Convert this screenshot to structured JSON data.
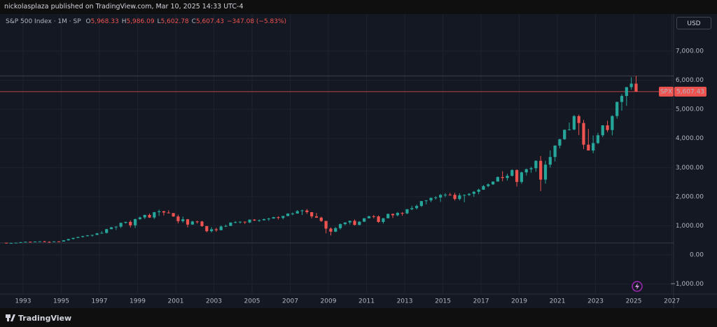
{
  "header": {
    "text": "nickolasplaza published on TradingView.com, Mar 10, 2025 14:33 UTC-4"
  },
  "legend": {
    "symbol": "S&P 500 Index · 1M · SP",
    "items": [
      {
        "key": "O",
        "value": "5,968.33"
      },
      {
        "key": "H",
        "value": "5,986.09"
      },
      {
        "key": "L",
        "value": "5,602.78"
      },
      {
        "key": "C",
        "value": "5,607.43"
      }
    ],
    "change": "−347.08 (−5.83%)"
  },
  "currency_button": "USD",
  "footer": {
    "brand": "TradingView"
  },
  "chart_data": {
    "type": "candlestick",
    "up_color": "#26a69a",
    "down_color": "#ef5350",
    "grid": true,
    "price_label": {
      "symbol": "SPX",
      "last_price": {
        "value": 5607.43,
        "label": "5,607.43"
      }
    },
    "reference_lines": [
      6147,
      409
    ],
    "xlim": [
      1991.79,
      2027.09
    ],
    "xticks": [
      1993,
      1995,
      1997,
      1999,
      2001,
      2003,
      2005,
      2007,
      2009,
      2011,
      2013,
      2015,
      2017,
      2019,
      2021,
      2023,
      2025,
      2027
    ],
    "ylim": [
      -1346,
      8274
    ],
    "yticks": [
      {
        "value": -1000,
        "label": "−1,000.00"
      },
      {
        "value": 0,
        "label": "0.00"
      },
      {
        "value": 1000,
        "label": "1,000.00"
      },
      {
        "value": 2000,
        "label": "2,000.00"
      },
      {
        "value": 3000,
        "label": "3,000.00"
      },
      {
        "value": 4000,
        "label": "4,000.00"
      },
      {
        "value": 5000,
        "label": "5,000.00"
      },
      {
        "value": 6000,
        "label": "6,000.00"
      },
      {
        "value": 7000,
        "label": "7,000.00"
      }
    ],
    "x": [
      1992,
      1992.25,
      1992.5,
      1992.75,
      1993,
      1993.25,
      1993.5,
      1993.75,
      1994,
      1994.25,
      1994.5,
      1994.75,
      1995,
      1995.25,
      1995.5,
      1995.75,
      1996,
      1996.25,
      1996.5,
      1996.75,
      1997,
      1997.25,
      1997.5,
      1997.75,
      1998,
      1998.25,
      1998.5,
      1998.75,
      1999,
      1999.25,
      1999.5,
      1999.75,
      2000,
      2000.25,
      2000.5,
      2000.75,
      2001,
      2001.25,
      2001.5,
      2001.75,
      2002,
      2002.25,
      2002.5,
      2002.75,
      2003,
      2003.25,
      2003.5,
      2003.75,
      2004,
      2004.25,
      2004.5,
      2004.75,
      2005,
      2005.25,
      2005.5,
      2005.75,
      2006,
      2006.25,
      2006.5,
      2006.75,
      2007,
      2007.25,
      2007.5,
      2007.75,
      2008,
      2008.25,
      2008.5,
      2008.75,
      2009,
      2009.25,
      2009.5,
      2009.75,
      2010,
      2010.25,
      2010.5,
      2010.75,
      2011,
      2011.25,
      2011.5,
      2011.75,
      2012,
      2012.25,
      2012.5,
      2012.75,
      2013,
      2013.25,
      2013.5,
      2013.75,
      2014,
      2014.25,
      2014.5,
      2014.75,
      2015,
      2015.25,
      2015.5,
      2015.75,
      2016,
      2016.25,
      2016.5,
      2016.75,
      2017,
      2017.25,
      2017.5,
      2017.75,
      2018,
      2018.25,
      2018.5,
      2018.75,
      2019,
      2019.25,
      2019.5,
      2019.75,
      2020,
      2020.25,
      2020.5,
      2020.75,
      2021,
      2021.25,
      2021.5,
      2021.75,
      2022,
      2022.25,
      2022.5,
      2022.75,
      2023,
      2023.25,
      2023.5,
      2023.75,
      2024,
      2024.25,
      2024.5,
      2024.75,
      2025
    ],
    "open": [
      417,
      404,
      408,
      418,
      436,
      452,
      451,
      459,
      466,
      446,
      444,
      463,
      459,
      501,
      545,
      584,
      616,
      645,
      671,
      687,
      741,
      757,
      885,
      947,
      970,
      1102,
      1134,
      1017,
      1229,
      1286,
      1373,
      1283,
      1469,
      1499,
      1455,
      1436,
      1320,
      1160,
      1224,
      1041,
      1148,
      1147,
      990,
      815,
      880,
      848,
      975,
      996,
      1112,
      1126,
      1141,
      1115,
      1212,
      1181,
      1191,
      1229,
      1248,
      1295,
      1270,
      1336,
      1418,
      1421,
      1503,
      1527,
      1468,
      1323,
      1280,
      1166,
      903,
      798,
      919,
      1057,
      1115,
      1169,
      1031,
      1141,
      1258,
      1326,
      1321,
      1131,
      1258,
      1408,
      1362,
      1441,
      1426,
      1569,
      1606,
      1682,
      1848,
      1872,
      1960,
      1972,
      2059,
      2068,
      2063,
      1920,
      2044,
      2060,
      2099,
      2168,
      2239,
      2363,
      2423,
      2519,
      2674,
      2641,
      2718,
      2914,
      2507,
      2834,
      2942,
      2977,
      3231,
      2585,
      3100,
      3363,
      3756,
      3973,
      4298,
      4308,
      4766,
      4530,
      3785,
      3586,
      3840,
      4109,
      4450,
      4288,
      4770,
      5254,
      5460,
      5762,
      5882
    ],
    "high": [
      421,
      416,
      425,
      442,
      456,
      458,
      463,
      470,
      482,
      467,
      468,
      472,
      503,
      547,
      586,
      622,
      656,
      681,
      690,
      757,
      816,
      895,
      961,
      983,
      1105,
      1138,
      1187,
      1244,
      1317,
      1380,
      1421,
      1473,
      1553,
      1517,
      1531,
      1437,
      1383,
      1315,
      1236,
      1172,
      1176,
      1170,
      994,
      954,
      935,
      1016,
      1040,
      1112,
      1163,
      1150,
      1146,
      1217,
      1229,
      1217,
      1245,
      1275,
      1310,
      1326,
      1340,
      1431,
      1461,
      1540,
      1556,
      1576,
      1471,
      1440,
      1313,
      1168,
      943,
      956,
      1080,
      1120,
      1180,
      1220,
      1157,
      1263,
      1344,
      1371,
      1356,
      1267,
      1419,
      1422,
      1474,
      1470,
      1570,
      1687,
      1729,
      1849,
      1884,
      1968,
      2019,
      2093,
      2119,
      2135,
      2132,
      2116,
      2076,
      2120,
      2194,
      2278,
      2401,
      2454,
      2520,
      2694,
      2873,
      2791,
      2941,
      2940,
      2861,
      2964,
      3028,
      3248,
      3394,
      3234,
      3588,
      3760,
      3984,
      4302,
      4545,
      4808,
      4819,
      4637,
      4325,
      4101,
      4195,
      4458,
      4607,
      4794,
      5264,
      5523,
      5767,
      6100,
      6147
    ],
    "low": [
      394,
      396,
      403,
      409,
      429,
      437,
      442,
      448,
      435,
      435,
      441,
      444,
      455,
      488,
      536,
      575,
      597,
      627,
      625,
      681,
      733,
      733,
      882,
      855,
      924,
      1074,
      940,
      923,
      1205,
      1229,
      1268,
      1233,
      1339,
      1356,
      1423,
      1305,
      1081,
      1103,
      944,
      1040,
      1074,
      964,
      775,
      768,
      788,
      847,
      960,
      990,
      1087,
      1076,
      1060,
      1090,
      1163,
      1137,
      1183,
      1168,
      1245,
      1219,
      1224,
      1327,
      1364,
      1416,
      1371,
      1407,
      1256,
      1270,
      1133,
      741,
      667,
      783,
      869,
      1020,
      1044,
      1011,
      1011,
      1131,
      1250,
      1258,
      1101,
      1075,
      1258,
      1267,
      1325,
      1343,
      1398,
      1536,
      1560,
      1646,
      1737,
      1814,
      1904,
      1821,
      1981,
      2039,
      1867,
      1872,
      1810,
      2025,
      1992,
      2084,
      2234,
      2322,
      2405,
      2520,
      2533,
      2553,
      2692,
      2347,
      2444,
      2729,
      2823,
      2856,
      2192,
      2447,
      3000,
      3209,
      3662,
      3952,
      4278,
      4278,
      4115,
      3637,
      3584,
      3492,
      3809,
      4049,
      4217,
      4104,
      4683,
      4953,
      5119,
      5674,
      5603
    ],
    "close": [
      404,
      408,
      418,
      436,
      452,
      451,
      459,
      466,
      446,
      444,
      463,
      459,
      501,
      545,
      584,
      616,
      645,
      671,
      687,
      741,
      757,
      885,
      947,
      970,
      1102,
      1134,
      1017,
      1229,
      1286,
      1373,
      1283,
      1469,
      1499,
      1455,
      1436,
      1320,
      1160,
      1224,
      1041,
      1148,
      1147,
      990,
      815,
      880,
      848,
      975,
      996,
      1112,
      1126,
      1141,
      1115,
      1212,
      1181,
      1191,
      1229,
      1248,
      1295,
      1270,
      1336,
      1418,
      1421,
      1503,
      1527,
      1468,
      1323,
      1280,
      1166,
      903,
      798,
      919,
      1057,
      1115,
      1169,
      1031,
      1141,
      1258,
      1326,
      1321,
      1131,
      1258,
      1408,
      1362,
      1441,
      1426,
      1569,
      1606,
      1682,
      1848,
      1872,
      1960,
      1972,
      2059,
      2068,
      2063,
      1920,
      2044,
      2060,
      2099,
      2168,
      2239,
      2363,
      2423,
      2519,
      2674,
      2641,
      2718,
      2914,
      2507,
      2834,
      2942,
      2977,
      3231,
      2585,
      3100,
      3363,
      3756,
      3973,
      4298,
      4308,
      4766,
      4530,
      3785,
      3586,
      3840,
      4109,
      4450,
      4288,
      4770,
      5254,
      5460,
      5762,
      5882,
      5607
    ]
  }
}
